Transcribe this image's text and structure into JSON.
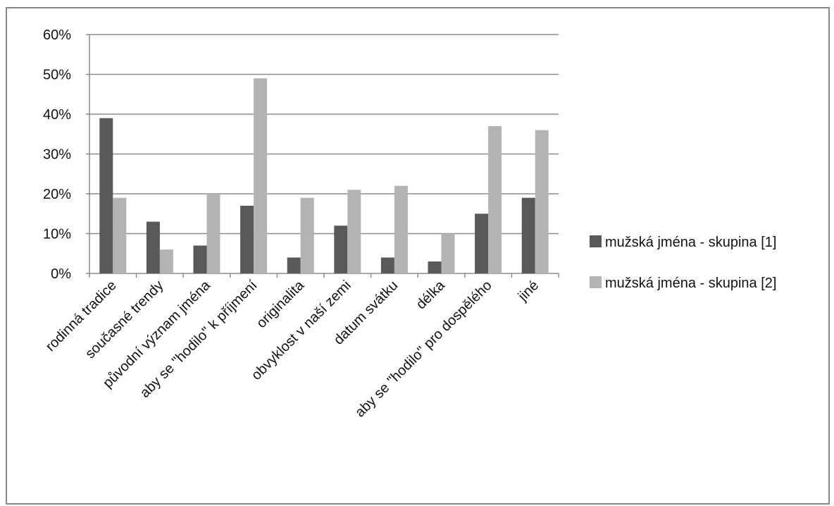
{
  "chart_data": {
    "type": "bar",
    "categories": [
      "rodinná tradice",
      "současné trendy",
      "původní význam jména",
      "aby se \"hodilo\" k příjmení",
      "originalita",
      "obvyklost v naší zemi",
      "datum svátku",
      "délka",
      "aby se \"hodilo\" pro dospělého",
      "jiné"
    ],
    "series": [
      {
        "name": "mužská jména - skupina [1]",
        "color": "#595959",
        "values": [
          39,
          13,
          7,
          17,
          4,
          12,
          4,
          3,
          15,
          19
        ]
      },
      {
        "name": "mužská jména - skupina [2]",
        "color": "#b3b3b3",
        "values": [
          19,
          6,
          20,
          49,
          19,
          21,
          22,
          10,
          37,
          36
        ]
      }
    ],
    "ylim": [
      0,
      60
    ],
    "yticks": [
      0,
      10,
      20,
      30,
      40,
      50,
      60
    ],
    "ytick_suffix": "%",
    "grid": true,
    "legend": "right"
  }
}
